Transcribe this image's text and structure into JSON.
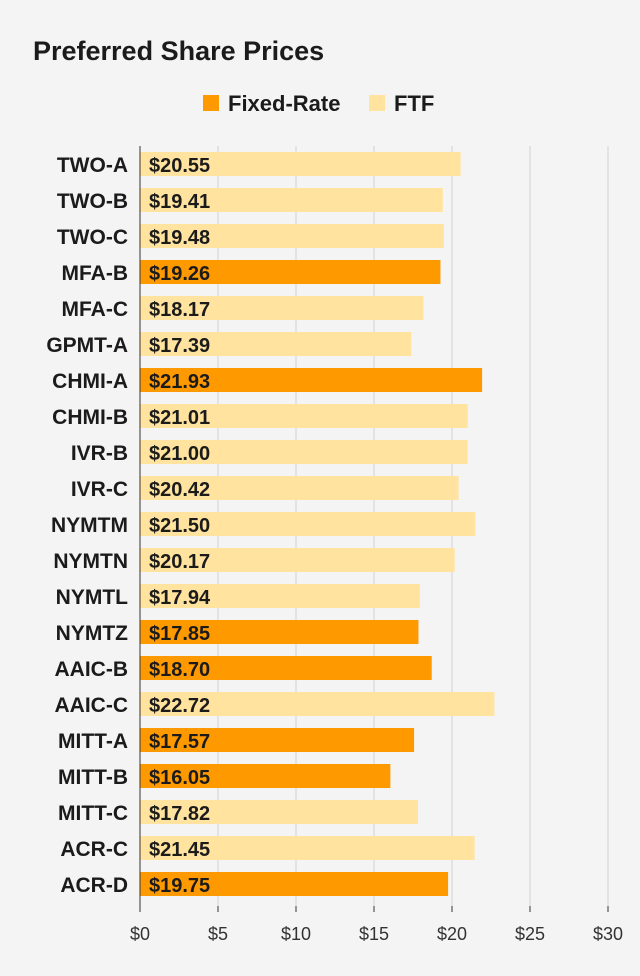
{
  "chart_data": {
    "type": "bar",
    "orientation": "horizontal",
    "title": "Preferred Share Prices",
    "legend": {
      "placement": "top-center",
      "entries": [
        {
          "name": "Fixed-Rate",
          "color": "#ff9900"
        },
        {
          "name": "FTF",
          "color": "#ffe39e"
        }
      ]
    },
    "categories": [
      "TWO-A",
      "TWO-B",
      "TWO-C",
      "MFA-B",
      "MFA-C",
      "GPMT-A",
      "CHMI-A",
      "CHMI-B",
      "IVR-B",
      "IVR-C",
      "NYMTM",
      "NYMTN",
      "NYMTL",
      "NYMTZ",
      "AAIC-B",
      "AAIC-C",
      "MITT-A",
      "MITT-B",
      "MITT-C",
      "ACR-C",
      "ACR-D"
    ],
    "values": [
      20.55,
      19.41,
      19.48,
      19.26,
      18.17,
      17.39,
      21.93,
      21.01,
      21.0,
      20.42,
      21.5,
      20.17,
      17.94,
      17.85,
      18.7,
      22.72,
      17.57,
      16.05,
      17.82,
      21.45,
      19.75
    ],
    "value_labels": [
      "$20.55",
      "$19.41",
      "$19.48",
      "$19.26",
      "$18.17",
      "$17.39",
      "$21.93",
      "$21.01",
      "$21.00",
      "$20.42",
      "$21.50",
      "$20.17",
      "$17.94",
      "$17.85",
      "$18.70",
      "$22.72",
      "$17.57",
      "$16.05",
      "$17.82",
      "$21.45",
      "$19.75"
    ],
    "series_membership": [
      "FTF",
      "FTF",
      "FTF",
      "Fixed-Rate",
      "FTF",
      "FTF",
      "Fixed-Rate",
      "FTF",
      "FTF",
      "FTF",
      "FTF",
      "FTF",
      "FTF",
      "Fixed-Rate",
      "Fixed-Rate",
      "FTF",
      "Fixed-Rate",
      "Fixed-Rate",
      "FTF",
      "FTF",
      "Fixed-Rate"
    ],
    "xlim": [
      0,
      30
    ],
    "xticks": [
      0,
      5,
      10,
      15,
      20,
      25,
      30
    ],
    "xtick_labels": [
      "$0",
      "$5",
      "$10",
      "$15",
      "$20",
      "$25",
      "$30"
    ],
    "grid": "vertical",
    "xlabel": "",
    "ylabel": ""
  }
}
